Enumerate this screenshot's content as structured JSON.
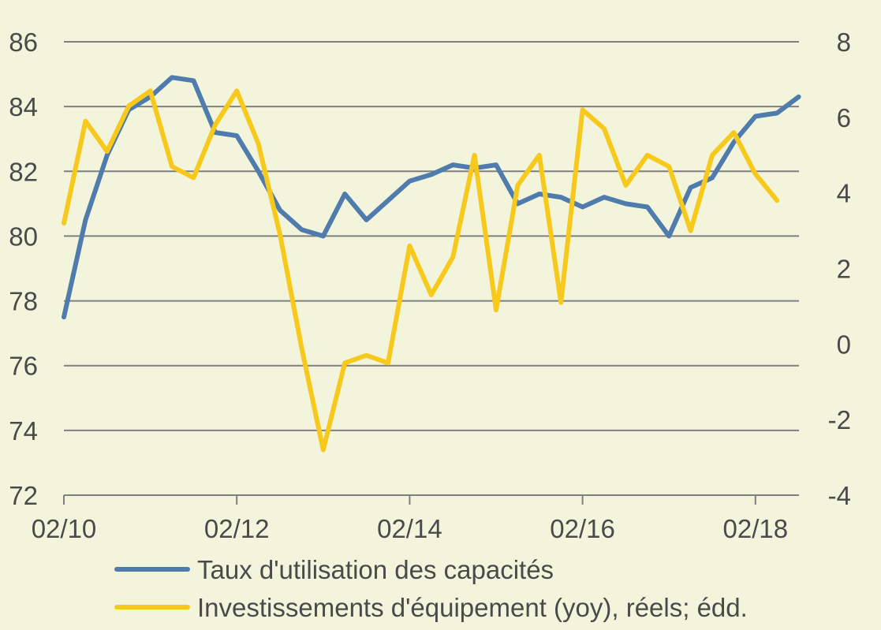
{
  "chart_data": {
    "type": "line",
    "title": "",
    "x": [
      "02/10",
      "05/10",
      "08/10",
      "11/10",
      "02/11",
      "05/11",
      "08/11",
      "11/11",
      "02/12",
      "05/12",
      "08/12",
      "11/12",
      "02/13",
      "05/13",
      "08/13",
      "11/13",
      "02/14",
      "05/14",
      "08/14",
      "11/14",
      "02/15",
      "05/15",
      "08/15",
      "11/15",
      "02/16",
      "05/16",
      "08/16",
      "11/16",
      "02/17",
      "05/17",
      "08/17",
      "11/17",
      "02/18",
      "05/18",
      "08/18"
    ],
    "x_tick_labels": [
      "02/10",
      "02/12",
      "02/14",
      "02/16",
      "02/18"
    ],
    "y_left": {
      "ticks": [
        72,
        74,
        76,
        78,
        80,
        82,
        84,
        86
      ],
      "ylim": [
        72,
        86
      ]
    },
    "y_right": {
      "ticks": [
        -4,
        -2,
        0,
        2,
        4,
        6,
        8
      ],
      "ylim": [
        -4,
        8
      ]
    },
    "grid": true,
    "legend_position": "bottom",
    "series": [
      {
        "name": "Taux d'utilisation des capacités",
        "axis": "left",
        "color": "#4f7bad",
        "values": [
          77.5,
          80.5,
          82.5,
          83.9,
          84.3,
          84.9,
          84.8,
          83.2,
          83.1,
          82.0,
          80.8,
          80.2,
          80.0,
          81.3,
          80.5,
          81.1,
          81.7,
          81.9,
          82.2,
          82.1,
          82.2,
          81.0,
          81.3,
          81.2,
          80.9,
          81.2,
          81.0,
          80.9,
          80.0,
          81.5,
          81.8,
          82.9,
          83.7,
          83.8,
          84.3
        ]
      },
      {
        "name": "Investissements d'équipement (yoy), réels; édd.",
        "axis": "right",
        "color": "#f7c91c",
        "values": [
          3.2,
          5.9,
          5.1,
          6.3,
          6.7,
          4.7,
          4.4,
          5.8,
          6.7,
          5.3,
          2.9,
          -0.1,
          -2.8,
          -0.5,
          -0.3,
          -0.5,
          2.6,
          1.3,
          2.3,
          5.0,
          0.9,
          4.2,
          5.0,
          1.1,
          6.2,
          5.7,
          4.2,
          5.0,
          4.7,
          3.0,
          5.0,
          5.6,
          4.5,
          3.8,
          null
        ]
      }
    ]
  },
  "colors": {
    "background": "#f2f5dc",
    "grid": "#7f7f7f",
    "text": "#4a4a4a"
  }
}
